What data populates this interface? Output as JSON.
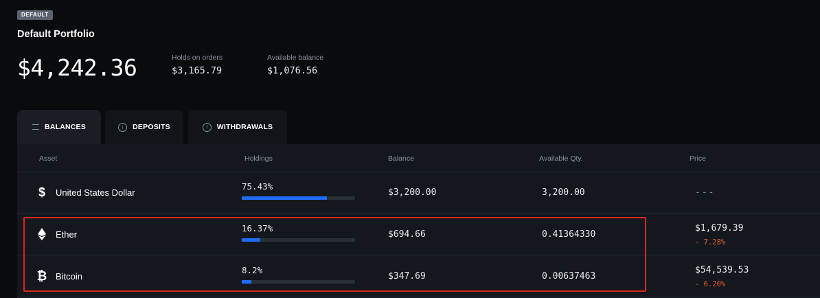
{
  "portfolio": {
    "badge": "DEFAULT",
    "name": "Default Portfolio",
    "total": "$4,242.36",
    "holds_label": "Holds on orders",
    "holds_value": "$3,165.79",
    "available_label": "Available balance",
    "available_value": "$1,076.56"
  },
  "tabs": [
    {
      "label": "BALANCES",
      "icon": "list-icon",
      "active": true
    },
    {
      "label": "DEPOSITS",
      "icon": "arrow-down-circle-icon",
      "active": false
    },
    {
      "label": "WITHDRAWALS",
      "icon": "arrow-up-circle-icon",
      "active": false
    }
  ],
  "table": {
    "headers": [
      "Asset",
      "Holdings",
      "Balance",
      "Available Qty.",
      "Price"
    ],
    "rows": [
      {
        "icon": "dollar-icon",
        "name": "United States Dollar",
        "holdings": "75.43%",
        "holdings_fraction": 0.7543,
        "balance": "$3,200.00",
        "available": "3,200.00",
        "price": "---",
        "change": ""
      },
      {
        "icon": "ether-icon",
        "name": "Ether",
        "holdings": "16.37%",
        "holdings_fraction": 0.1637,
        "balance": "$694.66",
        "available": "0.41364330",
        "price": "$1,679.39",
        "change": "- 7.28%"
      },
      {
        "icon": "bitcoin-icon",
        "name": "Bitcoin",
        "holdings": "8.2%",
        "holdings_fraction": 0.082,
        "balance": "$347.69",
        "available": "0.00637463",
        "price": "$54,539.53",
        "change": "- 6.20%"
      }
    ]
  },
  "colors": {
    "accent": "#1f6bff",
    "negative": "#ee5a36",
    "highlight_border": "#d9261c",
    "background": "#0a0b0d"
  }
}
